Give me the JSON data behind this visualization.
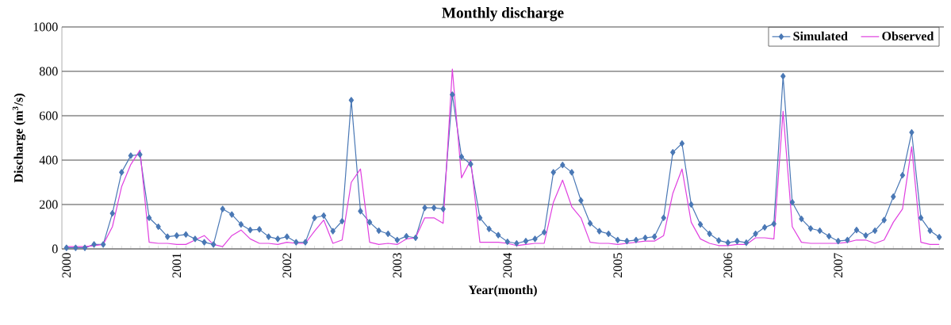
{
  "chart_data": {
    "type": "line",
    "title": "Monthly discharge",
    "xlabel": "Year(month)",
    "ylabel": "Discharge (m$^{3}$/s)",
    "categories": [
      "2000",
      null,
      null,
      null,
      null,
      null,
      null,
      null,
      null,
      null,
      null,
      null,
      "2001",
      null,
      null,
      null,
      null,
      null,
      null,
      null,
      null,
      null,
      null,
      null,
      "2002",
      null,
      null,
      null,
      null,
      null,
      null,
      null,
      null,
      null,
      null,
      null,
      "2003",
      null,
      null,
      null,
      null,
      null,
      null,
      null,
      null,
      null,
      null,
      null,
      "2004",
      null,
      null,
      null,
      null,
      null,
      null,
      null,
      null,
      null,
      null,
      null,
      "2005",
      null,
      null,
      null,
      null,
      null,
      null,
      null,
      null,
      null,
      null,
      null,
      "2006",
      null,
      null,
      null,
      null,
      null,
      null,
      null,
      null,
      null,
      null,
      null,
      "2007",
      null,
      null,
      null,
      null,
      null,
      null,
      null,
      null,
      null,
      null,
      null
    ],
    "series": [
      {
        "name": "Simulated",
        "color": "#4a78b5",
        "marker": "diamond",
        "values": [
          5,
          5,
          5,
          20,
          20,
          160,
          345,
          420,
          425,
          140,
          100,
          55,
          60,
          65,
          45,
          30,
          20,
          180,
          155,
          110,
          85,
          88,
          55,
          45,
          55,
          30,
          30,
          140,
          150,
          80,
          125,
          670,
          170,
          120,
          82,
          68,
          40,
          57,
          50,
          185,
          185,
          180,
          695,
          415,
          382,
          140,
          90,
          62,
          32,
          25,
          35,
          45,
          75,
          345,
          378,
          345,
          218,
          115,
          80,
          68,
          40,
          35,
          40,
          50,
          55,
          140,
          435,
          475,
          200,
          110,
          68,
          38,
          28,
          35,
          28,
          68,
          97,
          113,
          778,
          210,
          135,
          92,
          82,
          57,
          35,
          40,
          85,
          60,
          82,
          130,
          235,
          332,
          525,
          140,
          82,
          53
        ]
      },
      {
        "name": "Observed",
        "color": "#e040e0",
        "marker": "none",
        "values": [
          10,
          10,
          10,
          15,
          20,
          100,
          280,
          380,
          445,
          30,
          25,
          25,
          20,
          20,
          40,
          60,
          20,
          10,
          60,
          85,
          45,
          25,
          25,
          20,
          30,
          25,
          25,
          80,
          130,
          25,
          40,
          300,
          360,
          30,
          20,
          25,
          20,
          45,
          50,
          140,
          140,
          115,
          810,
          320,
          400,
          30,
          30,
          30,
          25,
          15,
          20,
          25,
          25,
          210,
          310,
          190,
          140,
          30,
          25,
          25,
          20,
          25,
          30,
          35,
          35,
          60,
          250,
          360,
          120,
          45,
          25,
          15,
          15,
          20,
          20,
          50,
          50,
          45,
          620,
          100,
          30,
          25,
          25,
          25,
          25,
          30,
          40,
          40,
          25,
          40,
          120,
          180,
          460,
          30,
          20,
          20
        ]
      }
    ],
    "ylim": [
      0,
      1000
    ],
    "yticks": [
      0,
      200,
      400,
      600,
      800,
      1000
    ],
    "grid": "y",
    "legend": "top right",
    "line_style": "solid"
  }
}
